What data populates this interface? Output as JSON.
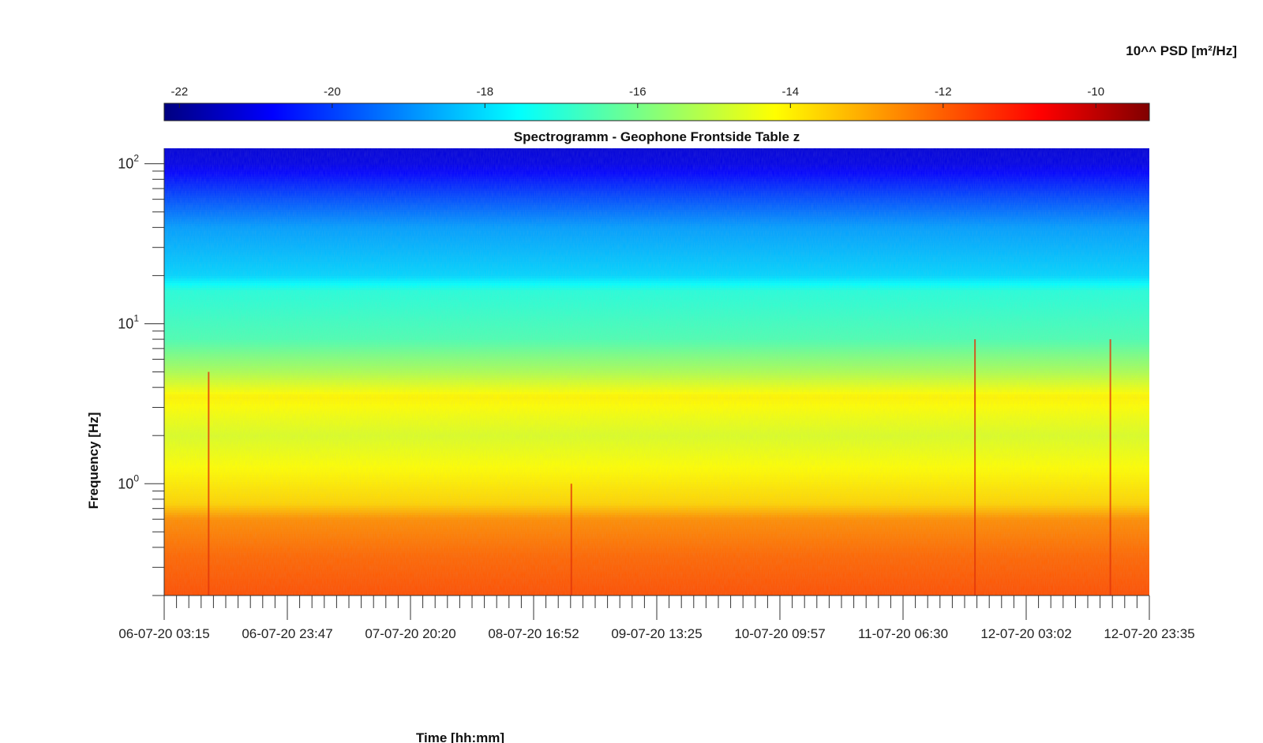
{
  "colorbar": {
    "title": "10^^ PSD [m²/Hz]",
    "ticks": [
      -22,
      -20,
      -18,
      -16,
      -14,
      -12,
      -10
    ],
    "range": [
      -22.2,
      -9.3
    ],
    "colormap": "jet"
  },
  "chart_data": {
    "type": "heatmap",
    "title": "Spectrogramm - Geophone Frontside Table z",
    "xlabel": "Time [hh:mm]",
    "ylabel": "Frequency [Hz]",
    "y_scale": "log",
    "ylim": [
      0.2,
      125
    ],
    "y_ticks": [
      {
        "base": "10",
        "exp": "0",
        "value": 1
      },
      {
        "base": "10",
        "exp": "1",
        "value": 10
      },
      {
        "base": "10",
        "exp": "2",
        "value": 100
      }
    ],
    "x_ticks": [
      "06-07-20 03:15",
      "06-07-20 23:47",
      "07-07-20 20:20",
      "08-07-20 16:52",
      "09-07-20 13:25",
      "10-07-20 09:57",
      "11-07-20 06:30",
      "12-07-20 03:02",
      "12-07-20 23:35"
    ],
    "z_unit": "log10 PSD [m²/Hz]",
    "profile": [
      {
        "f": 0.2,
        "z": -11.9
      },
      {
        "f": 0.35,
        "z": -12.2
      },
      {
        "f": 0.6,
        "z": -12.7
      },
      {
        "f": 0.75,
        "z": -13.6
      },
      {
        "f": 1.0,
        "z": -13.9
      },
      {
        "f": 2.0,
        "z": -14.6
      },
      {
        "f": 3.5,
        "z": -14.0
      },
      {
        "f": 5.0,
        "z": -15.2
      },
      {
        "f": 8.0,
        "z": -16.4
      },
      {
        "f": 12.0,
        "z": -16.7
      },
      {
        "f": 16.0,
        "z": -16.9
      },
      {
        "f": 20.0,
        "z": -17.9
      },
      {
        "f": 40.0,
        "z": -18.6
      },
      {
        "f": 60.0,
        "z": -19.6
      },
      {
        "f": 100.0,
        "z": -20.9
      },
      {
        "f": 125.0,
        "z": -21.1
      }
    ],
    "spikes": [
      {
        "time": "06-07-20 10:40",
        "f_max": 5.0
      },
      {
        "time": "08-07-20 23:10",
        "f_max": 1.0
      },
      {
        "time": "11-07-20 18:30",
        "f_max": 8.0
      },
      {
        "time": "12-07-20 17:05",
        "f_max": 8.0
      }
    ]
  }
}
